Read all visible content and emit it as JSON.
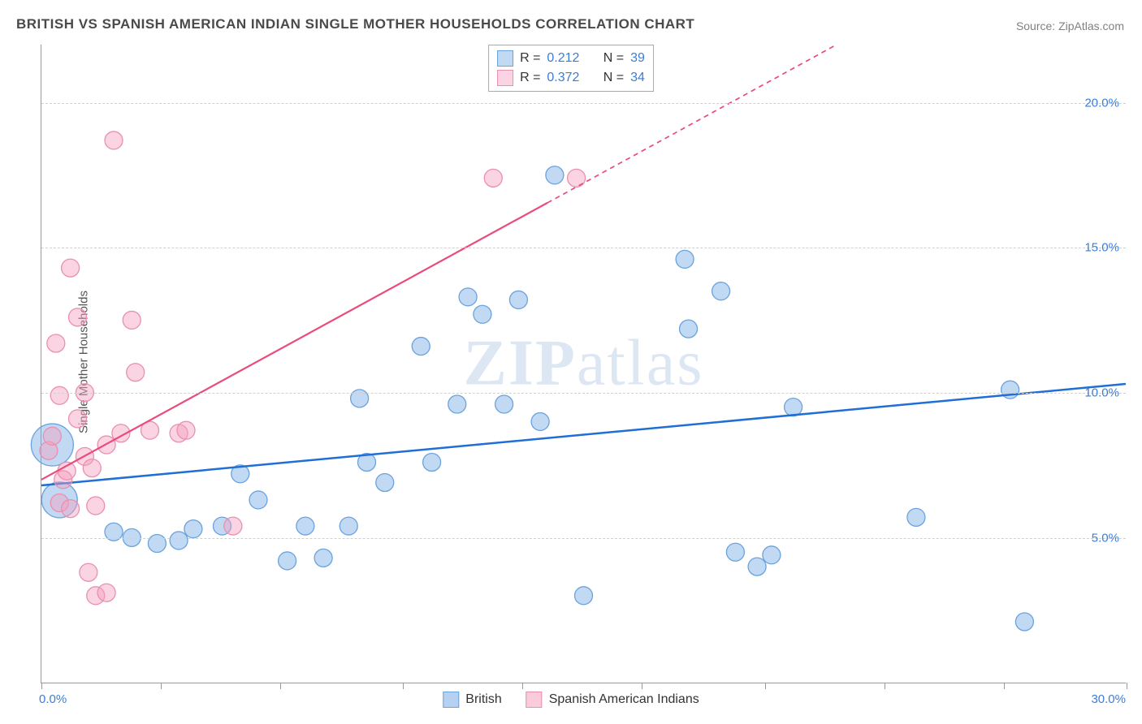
{
  "title": "BRITISH VS SPANISH AMERICAN INDIAN SINGLE MOTHER HOUSEHOLDS CORRELATION CHART",
  "source": "Source: ZipAtlas.com",
  "ylabel": "Single Mother Households",
  "watermark_zip": "ZIP",
  "watermark_atlas": "atlas",
  "chart": {
    "type": "scatter",
    "xlim": [
      0,
      30
    ],
    "ylim": [
      0,
      22
    ],
    "xtick_positions": [
      0,
      3.3,
      6.6,
      10,
      13.3,
      16.6,
      20,
      23.3,
      26.6,
      30
    ],
    "ytick_positions": [
      5,
      10,
      15,
      20
    ],
    "ytick_labels": [
      "5.0%",
      "10.0%",
      "15.0%",
      "20.0%"
    ],
    "xlim_min_label": "0.0%",
    "xlim_max_label": "30.0%",
    "background_color": "#ffffff",
    "grid_color": "#d0d0d0",
    "axis_color": "#999999"
  },
  "series": [
    {
      "name": "British",
      "color_fill": "rgba(120,170,230,0.45)",
      "color_stroke": "#6aa3dd",
      "marker_radius": 11,
      "line_color": "#1f6fd4",
      "line_width": 2.5,
      "regression": {
        "x1": 0,
        "y1": 6.8,
        "x2": 30,
        "y2": 10.3,
        "dashed_from_x": null
      },
      "R": "0.212",
      "N": "39",
      "points": [
        {
          "x": 0.3,
          "y": 8.2,
          "r": 26
        },
        {
          "x": 0.5,
          "y": 6.3,
          "r": 22
        },
        {
          "x": 2.0,
          "y": 5.2
        },
        {
          "x": 2.5,
          "y": 5.0
        },
        {
          "x": 3.2,
          "y": 4.8
        },
        {
          "x": 3.8,
          "y": 4.9
        },
        {
          "x": 4.2,
          "y": 5.3
        },
        {
          "x": 5.0,
          "y": 5.4
        },
        {
          "x": 5.5,
          "y": 7.2
        },
        {
          "x": 6.0,
          "y": 6.3
        },
        {
          "x": 6.8,
          "y": 4.2
        },
        {
          "x": 7.3,
          "y": 5.4
        },
        {
          "x": 7.8,
          "y": 4.3
        },
        {
          "x": 8.5,
          "y": 5.4
        },
        {
          "x": 8.8,
          "y": 9.8
        },
        {
          "x": 9.0,
          "y": 7.6
        },
        {
          "x": 9.5,
          "y": 6.9
        },
        {
          "x": 10.5,
          "y": 11.6
        },
        {
          "x": 10.8,
          "y": 7.6
        },
        {
          "x": 11.5,
          "y": 9.6
        },
        {
          "x": 11.8,
          "y": 13.3
        },
        {
          "x": 12.2,
          "y": 12.7
        },
        {
          "x": 12.8,
          "y": 9.6
        },
        {
          "x": 13.2,
          "y": 13.2
        },
        {
          "x": 13.8,
          "y": 9.0
        },
        {
          "x": 14.2,
          "y": 17.5
        },
        {
          "x": 15.0,
          "y": 3.0
        },
        {
          "x": 17.8,
          "y": 14.6
        },
        {
          "x": 17.9,
          "y": 12.2
        },
        {
          "x": 18.8,
          "y": 13.5
        },
        {
          "x": 19.2,
          "y": 4.5
        },
        {
          "x": 19.8,
          "y": 4.0
        },
        {
          "x": 20.2,
          "y": 4.4
        },
        {
          "x": 20.8,
          "y": 9.5
        },
        {
          "x": 24.2,
          "y": 5.7
        },
        {
          "x": 26.8,
          "y": 10.1
        },
        {
          "x": 27.2,
          "y": 2.1
        }
      ]
    },
    {
      "name": "Spanish American Indians",
      "color_fill": "rgba(245,160,190,0.45)",
      "color_stroke": "#ea8fb0",
      "marker_radius": 11,
      "line_color": "#e94b7a",
      "line_width": 2.2,
      "regression": {
        "x1": 0,
        "y1": 7.0,
        "x2": 22,
        "y2": 22,
        "dashed_from_x": 14
      },
      "R": "0.372",
      "N": "34",
      "points": [
        {
          "x": 0.2,
          "y": 8.0
        },
        {
          "x": 0.3,
          "y": 8.5
        },
        {
          "x": 0.4,
          "y": 11.7
        },
        {
          "x": 0.5,
          "y": 9.9
        },
        {
          "x": 0.5,
          "y": 6.2
        },
        {
          "x": 0.6,
          "y": 7.0
        },
        {
          "x": 0.7,
          "y": 7.3
        },
        {
          "x": 0.8,
          "y": 6.0
        },
        {
          "x": 0.8,
          "y": 14.3
        },
        {
          "x": 1.0,
          "y": 9.1
        },
        {
          "x": 1.0,
          "y": 12.6
        },
        {
          "x": 1.2,
          "y": 10.0
        },
        {
          "x": 1.2,
          "y": 7.8
        },
        {
          "x": 1.3,
          "y": 3.8
        },
        {
          "x": 1.4,
          "y": 7.4
        },
        {
          "x": 1.5,
          "y": 6.1
        },
        {
          "x": 1.5,
          "y": 3.0
        },
        {
          "x": 1.8,
          "y": 3.1
        },
        {
          "x": 1.8,
          "y": 8.2
        },
        {
          "x": 2.0,
          "y": 18.7
        },
        {
          "x": 2.2,
          "y": 8.6
        },
        {
          "x": 2.5,
          "y": 12.5
        },
        {
          "x": 2.6,
          "y": 10.7
        },
        {
          "x": 3.0,
          "y": 8.7
        },
        {
          "x": 3.8,
          "y": 8.6
        },
        {
          "x": 4.0,
          "y": 8.7
        },
        {
          "x": 5.3,
          "y": 5.4
        },
        {
          "x": 12.5,
          "y": 17.4
        },
        {
          "x": 14.8,
          "y": 17.4
        }
      ]
    }
  ],
  "legend_top": {
    "R_label": "R  =",
    "N_label": "N  ="
  },
  "legend_bottom": [
    {
      "label": "British",
      "fill": "rgba(120,170,230,0.55)",
      "stroke": "#6aa3dd"
    },
    {
      "label": "Spanish American Indians",
      "fill": "rgba(245,160,190,0.55)",
      "stroke": "#ea8fb0"
    }
  ]
}
